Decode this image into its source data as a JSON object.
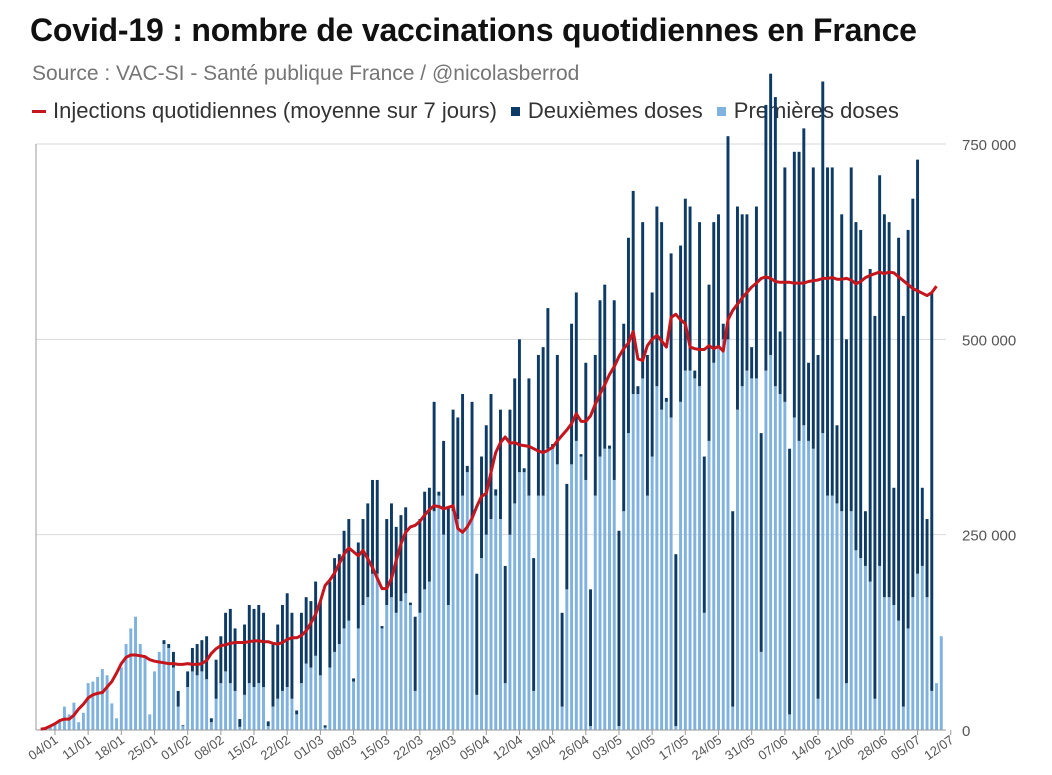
{
  "title": "Covid-19 : nombre de vaccinations quotidiennes en France",
  "source": "Source : VAC-SI - Santé publique France / @nicolasberrod",
  "legend": [
    {
      "label": "Injections quotidiennes (moyenne sur 7 jours)",
      "color": "#c4161c",
      "kind": "line"
    },
    {
      "label": "Deuxièmes doses",
      "color": "#0d3b66",
      "kind": "box"
    },
    {
      "label": "Premières doses",
      "color": "#7fb2df",
      "kind": "box"
    }
  ],
  "chart_data": {
    "type": "bar",
    "stacked": true,
    "title": "Covid-19 : nombre de vaccinations quotidiennes en France",
    "xlabel": "",
    "ylabel": "",
    "ylim": [
      0,
      750000
    ],
    "y_ticks": [
      0,
      250000,
      500000,
      750000
    ],
    "y_tick_labels": [
      "0",
      "250 000",
      "500 000",
      "750 000"
    ],
    "y_axis_side": "right",
    "grid": true,
    "x_start": "2021-01-01",
    "x_end": "2021-07-12",
    "x_ticks": [
      3,
      10,
      17,
      24,
      31,
      38,
      45,
      52,
      59,
      66,
      73,
      80,
      87,
      94,
      101,
      108,
      115,
      122,
      129,
      136,
      143,
      150,
      157,
      164,
      171,
      178,
      185,
      192
    ],
    "x_tick_labels": [
      "04/01",
      "11/01",
      "18/01",
      "25/01",
      "01/02",
      "08/02",
      "15/02",
      "22/02",
      "01/03",
      "08/03",
      "15/03",
      "22/03",
      "29/03",
      "05/04",
      "12/04",
      "19/04",
      "26/04",
      "03/05",
      "10/05",
      "17/05",
      "24/05",
      "31/05",
      "07/06",
      "14/06",
      "21/06",
      "28/06",
      "05/07",
      "12/07"
    ],
    "series": [
      {
        "name": "Premières doses",
        "color": "#7fb2df",
        "stack_order": 0,
        "values": [
          1000,
          2000,
          5000,
          9000,
          12000,
          30000,
          20000,
          35000,
          10000,
          22000,
          60000,
          62000,
          68000,
          78000,
          70000,
          34000,
          15000,
          80000,
          110000,
          130000,
          145000,
          110000,
          95000,
          20000,
          75000,
          100000,
          110000,
          105000,
          80000,
          30000,
          5000,
          55000,
          75000,
          70000,
          75000,
          65000,
          10000,
          40000,
          60000,
          75000,
          60000,
          50000,
          4000,
          45000,
          60000,
          55000,
          60000,
          55000,
          5000,
          30000,
          40000,
          50000,
          55000,
          40000,
          20000,
          60000,
          85000,
          80000,
          95000,
          70000,
          3000,
          80000,
          100000,
          110000,
          130000,
          140000,
          62000,
          130000,
          160000,
          170000,
          200000,
          200000,
          130000,
          160000,
          170000,
          150000,
          165000,
          175000,
          160000,
          50000,
          150000,
          180000,
          190000,
          280000,
          300000,
          250000,
          160000,
          280000,
          270000,
          300000,
          330000,
          270000,
          45000,
          220000,
          250000,
          270000,
          300000,
          270000,
          60000,
          250000,
          290000,
          330000,
          330000,
          300000,
          50000,
          300000,
          300000,
          360000,
          360000,
          340000,
          30000,
          180000,
          340000,
          370000,
          350000,
          320000,
          5000,
          300000,
          350000,
          360000,
          360000,
          320000,
          5000,
          280000,
          380000,
          430000,
          430000,
          450000,
          300000,
          350000,
          440000,
          410000,
          420000,
          400000,
          5000,
          420000,
          460000,
          460000,
          450000,
          440000,
          150000,
          370000,
          470000,
          490000,
          500000,
          500000,
          30000,
          410000,
          440000,
          460000,
          450000,
          450000,
          100000,
          460000,
          480000,
          440000,
          430000,
          420000,
          20000,
          400000,
          370000,
          390000,
          370000,
          360000,
          40000,
          380000,
          300000,
          300000,
          290000,
          280000,
          60000,
          280000,
          230000,
          220000,
          210000,
          190000,
          40000,
          210000,
          170000,
          170000,
          160000,
          140000,
          30000,
          130000,
          170000,
          200000,
          210000,
          170000,
          50000,
          60000,
          120000
        ]
      },
      {
        "name": "Deuxièmes doses",
        "color": "#0d3b66",
        "stack_order": 1,
        "values": [
          0,
          0,
          0,
          0,
          0,
          0,
          0,
          0,
          0,
          0,
          0,
          0,
          0,
          0,
          0,
          0,
          0,
          0,
          0,
          0,
          0,
          0,
          0,
          0,
          0,
          0,
          5000,
          5000,
          20000,
          20000,
          1000,
          20000,
          30000,
          40000,
          40000,
          55000,
          5000,
          50000,
          60000,
          75000,
          95000,
          80000,
          10000,
          90000,
          100000,
          100000,
          100000,
          95000,
          6000,
          80000,
          95000,
          110000,
          120000,
          110000,
          5000,
          90000,
          85000,
          85000,
          95000,
          95000,
          3000,
          110000,
          120000,
          115000,
          125000,
          130000,
          4000,
          110000,
          110000,
          120000,
          120000,
          120000,
          3000,
          110000,
          120000,
          110000,
          110000,
          110000,
          3000,
          95000,
          120000,
          125000,
          120000,
          140000,
          5000,
          120000,
          125000,
          130000,
          130000,
          130000,
          8000,
          150000,
          155000,
          130000,
          140000,
          160000,
          8000,
          140000,
          150000,
          160000,
          160000,
          170000,
          5000,
          150000,
          170000,
          180000,
          190000,
          180000,
          6000,
          140000,
          120000,
          135000,
          180000,
          190000,
          3000,
          150000,
          175000,
          180000,
          200000,
          210000,
          4000,
          230000,
          250000,
          240000,
          250000,
          260000,
          10000,
          200000,
          180000,
          210000,
          230000,
          240000,
          5000,
          210000,
          220000,
          200000,
          220000,
          210000,
          10000,
          210000,
          200000,
          200000,
          180000,
          170000,
          20000,
          260000,
          250000,
          260000,
          220000,
          200000,
          40000,
          220000,
          280000,
          340000,
          360000,
          370000,
          80000,
          300000,
          340000,
          340000,
          370000,
          380000,
          100000,
          360000,
          440000,
          450000,
          420000,
          420000,
          100000,
          380000,
          440000,
          440000,
          420000,
          420000,
          70000,
          400000,
          490000,
          500000,
          490000,
          480000,
          150000,
          490000,
          500000,
          510000,
          510000,
          530000,
          100000,
          100000,
          510000
        ]
      },
      {
        "name": "Injections quotidiennes (moyenne sur 7 jours)",
        "color": "#c4161c",
        "kind": "line",
        "values": [
          1000,
          2000,
          5000,
          8000,
          12000,
          14000,
          14000,
          19000,
          27000,
          33000,
          41000,
          45000,
          47000,
          48000,
          55000,
          62000,
          73000,
          85000,
          93000,
          96000,
          96000,
          95000,
          94000,
          90000,
          88000,
          87000,
          86000,
          85000,
          85000,
          84000,
          84000,
          85000,
          84000,
          84000,
          85000,
          89000,
          98000,
          104000,
          108000,
          109000,
          111000,
          112000,
          112000,
          112000,
          113000,
          114000,
          114000,
          113000,
          113000,
          111000,
          110000,
          112000,
          116000,
          118000,
          118000,
          121000,
          127000,
          137000,
          148000,
          165000,
          185000,
          192000,
          201000,
          213000,
          225000,
          233000,
          228000,
          223000,
          230000,
          219000,
          208000,
          194000,
          181000,
          181000,
          194000,
          217000,
          238000,
          253000,
          260000,
          262000,
          267000,
          275000,
          282000,
          287000,
          286000,
          283000,
          285000,
          287000,
          258000,
          253000,
          260000,
          271000,
          286000,
          299000,
          303000,
          330000,
          355000,
          368000,
          375000,
          367000,
          368000,
          365000,
          364000,
          363000,
          360000,
          357000,
          355000,
          358000,
          362000,
          370000,
          377000,
          384000,
          392000,
          405000,
          395000,
          395000,
          402000,
          417000,
          430000,
          442000,
          455000,
          465000,
          478000,
          488000,
          495000,
          510000,
          475000,
          473000,
          492000,
          500000,
          505000,
          498000,
          490000,
          528000,
          532000,
          525000,
          520000,
          490000,
          488000,
          487000,
          487000,
          492000,
          488000,
          491000,
          485000,
          525000,
          537000,
          545000,
          553000,
          560000,
          567000,
          572000,
          578000,
          580000,
          578000,
          574000,
          573000,
          573000,
          573000,
          572000,
          572000,
          572000,
          574000,
          575000,
          576000,
          578000,
          578000,
          579000,
          577000,
          577000,
          578000,
          576000,
          571000,
          574000,
          579000,
          582000,
          584000,
          586000,
          584000,
          586000,
          585000,
          580000,
          575000,
          570000,
          565000,
          562000,
          559000,
          556000,
          560000,
          568000
        ]
      }
    ]
  }
}
